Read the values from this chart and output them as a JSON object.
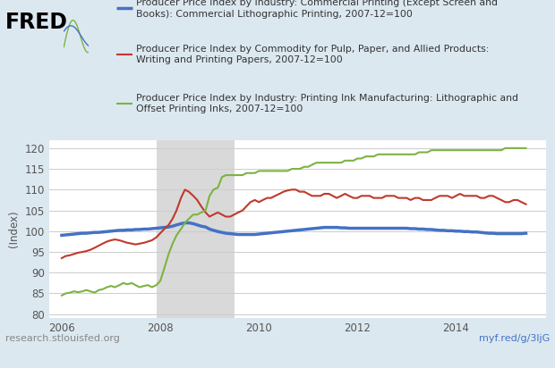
{
  "background_color": "#dce8f0",
  "plot_bg_color": "#ffffff",
  "gray_shade_start": 2007.92,
  "gray_shade_end": 2009.5,
  "gray_shade_color": "#d9d9d9",
  "xlim": [
    2005.75,
    2015.83
  ],
  "ylim": [
    79,
    122
  ],
  "yticks": [
    80,
    85,
    90,
    95,
    100,
    105,
    110,
    115,
    120
  ],
  "xticks": [
    2006,
    2008,
    2010,
    2012,
    2014
  ],
  "ylabel": "(Index)",
  "fred_text": "FRED",
  "url_left": "research.stlouisfed.org",
  "url_right": "myf.red/g/3ljG",
  "legend": [
    {
      "label": "Producer Price Index by Industry: Commercial Printing (Except Screen and\nBooks): Commercial Lithographic Printing, 2007-12=100",
      "color": "#4472c4",
      "linewidth": 2.5
    },
    {
      "label": "Producer Price Index by Commodity for Pulp, Paper, and Allied Products:\nWriting and Printing Papers, 2007-12=100",
      "color": "#c0392b",
      "linewidth": 1.5
    },
    {
      "label": "Producer Price Index by Industry: Printing Ink Manufacturing: Lithographic and\nOffset Printing Inks, 2007-12=100",
      "color": "#7cb342",
      "linewidth": 1.5
    }
  ],
  "blue_series": {
    "x": [
      2006.0,
      2006.08,
      2006.17,
      2006.25,
      2006.33,
      2006.42,
      2006.5,
      2006.58,
      2006.67,
      2006.75,
      2006.83,
      2006.92,
      2007.0,
      2007.08,
      2007.17,
      2007.25,
      2007.33,
      2007.42,
      2007.5,
      2007.58,
      2007.67,
      2007.75,
      2007.83,
      2007.92,
      2008.0,
      2008.08,
      2008.17,
      2008.25,
      2008.33,
      2008.42,
      2008.5,
      2008.58,
      2008.67,
      2008.75,
      2008.83,
      2008.92,
      2009.0,
      2009.08,
      2009.17,
      2009.25,
      2009.33,
      2009.42,
      2009.5,
      2009.58,
      2009.67,
      2009.75,
      2009.83,
      2009.92,
      2010.0,
      2010.08,
      2010.17,
      2010.25,
      2010.33,
      2010.42,
      2010.5,
      2010.58,
      2010.67,
      2010.75,
      2010.83,
      2010.92,
      2011.0,
      2011.08,
      2011.17,
      2011.25,
      2011.33,
      2011.42,
      2011.5,
      2011.58,
      2011.67,
      2011.75,
      2011.83,
      2011.92,
      2012.0,
      2012.08,
      2012.17,
      2012.25,
      2012.33,
      2012.42,
      2012.5,
      2012.58,
      2012.67,
      2012.75,
      2012.83,
      2012.92,
      2013.0,
      2013.08,
      2013.17,
      2013.25,
      2013.33,
      2013.42,
      2013.5,
      2013.58,
      2013.67,
      2013.75,
      2013.83,
      2013.92,
      2014.0,
      2014.08,
      2014.17,
      2014.25,
      2014.33,
      2014.42,
      2014.5,
      2014.58,
      2014.67,
      2014.75,
      2014.83,
      2014.92,
      2015.0,
      2015.08,
      2015.17,
      2015.25,
      2015.33,
      2015.42
    ],
    "y": [
      99.0,
      99.1,
      99.2,
      99.3,
      99.4,
      99.5,
      99.5,
      99.6,
      99.7,
      99.7,
      99.8,
      99.9,
      100.0,
      100.1,
      100.2,
      100.2,
      100.3,
      100.3,
      100.4,
      100.4,
      100.5,
      100.5,
      100.6,
      100.7,
      100.8,
      100.9,
      101.0,
      101.2,
      101.5,
      101.8,
      102.0,
      102.0,
      101.8,
      101.5,
      101.2,
      101.0,
      100.5,
      100.2,
      99.9,
      99.7,
      99.5,
      99.4,
      99.3,
      99.2,
      99.2,
      99.2,
      99.2,
      99.2,
      99.3,
      99.4,
      99.5,
      99.6,
      99.7,
      99.8,
      99.9,
      100.0,
      100.1,
      100.2,
      100.3,
      100.4,
      100.5,
      100.6,
      100.7,
      100.8,
      100.9,
      100.9,
      100.9,
      100.9,
      100.8,
      100.8,
      100.7,
      100.7,
      100.7,
      100.7,
      100.7,
      100.7,
      100.7,
      100.7,
      100.7,
      100.7,
      100.7,
      100.7,
      100.7,
      100.7,
      100.7,
      100.6,
      100.6,
      100.5,
      100.5,
      100.4,
      100.4,
      100.3,
      100.2,
      100.2,
      100.1,
      100.1,
      100.0,
      100.0,
      99.9,
      99.9,
      99.8,
      99.8,
      99.7,
      99.6,
      99.5,
      99.5,
      99.4,
      99.4,
      99.4,
      99.4,
      99.4,
      99.4,
      99.4,
      99.5
    ]
  },
  "red_series": {
    "x": [
      2006.0,
      2006.08,
      2006.17,
      2006.25,
      2006.33,
      2006.42,
      2006.5,
      2006.58,
      2006.67,
      2006.75,
      2006.83,
      2006.92,
      2007.0,
      2007.08,
      2007.17,
      2007.25,
      2007.33,
      2007.42,
      2007.5,
      2007.58,
      2007.67,
      2007.75,
      2007.83,
      2007.92,
      2008.0,
      2008.08,
      2008.17,
      2008.25,
      2008.33,
      2008.42,
      2008.5,
      2008.58,
      2008.67,
      2008.75,
      2008.83,
      2008.92,
      2009.0,
      2009.08,
      2009.17,
      2009.25,
      2009.33,
      2009.42,
      2009.5,
      2009.58,
      2009.67,
      2009.75,
      2009.83,
      2009.92,
      2010.0,
      2010.08,
      2010.17,
      2010.25,
      2010.33,
      2010.42,
      2010.5,
      2010.58,
      2010.67,
      2010.75,
      2010.83,
      2010.92,
      2011.0,
      2011.08,
      2011.17,
      2011.25,
      2011.33,
      2011.42,
      2011.5,
      2011.58,
      2011.67,
      2011.75,
      2011.83,
      2011.92,
      2012.0,
      2012.08,
      2012.17,
      2012.25,
      2012.33,
      2012.42,
      2012.5,
      2012.58,
      2012.67,
      2012.75,
      2012.83,
      2012.92,
      2013.0,
      2013.08,
      2013.17,
      2013.25,
      2013.33,
      2013.42,
      2013.5,
      2013.58,
      2013.67,
      2013.75,
      2013.83,
      2013.92,
      2014.0,
      2014.08,
      2014.17,
      2014.25,
      2014.33,
      2014.42,
      2014.5,
      2014.58,
      2014.67,
      2014.75,
      2014.83,
      2014.92,
      2015.0,
      2015.08,
      2015.17,
      2015.25,
      2015.33,
      2015.42
    ],
    "y": [
      93.5,
      94.0,
      94.2,
      94.5,
      94.8,
      95.0,
      95.2,
      95.5,
      96.0,
      96.5,
      97.0,
      97.5,
      97.8,
      98.0,
      97.8,
      97.5,
      97.2,
      97.0,
      96.8,
      97.0,
      97.2,
      97.5,
      97.8,
      98.5,
      99.5,
      100.5,
      101.5,
      103.0,
      105.0,
      108.0,
      110.0,
      109.5,
      108.5,
      107.5,
      106.0,
      104.5,
      103.5,
      104.0,
      104.5,
      104.0,
      103.5,
      103.5,
      104.0,
      104.5,
      105.0,
      106.0,
      107.0,
      107.5,
      107.0,
      107.5,
      108.0,
      108.0,
      108.5,
      109.0,
      109.5,
      109.8,
      110.0,
      110.0,
      109.5,
      109.5,
      109.0,
      108.5,
      108.5,
      108.5,
      109.0,
      109.0,
      108.5,
      108.0,
      108.5,
      109.0,
      108.5,
      108.0,
      108.0,
      108.5,
      108.5,
      108.5,
      108.0,
      108.0,
      108.0,
      108.5,
      108.5,
      108.5,
      108.0,
      108.0,
      108.0,
      107.5,
      108.0,
      108.0,
      107.5,
      107.5,
      107.5,
      108.0,
      108.5,
      108.5,
      108.5,
      108.0,
      108.5,
      109.0,
      108.5,
      108.5,
      108.5,
      108.5,
      108.0,
      108.0,
      108.5,
      108.5,
      108.0,
      107.5,
      107.0,
      107.0,
      107.5,
      107.5,
      107.0,
      106.5
    ]
  },
  "green_series": {
    "x": [
      2006.0,
      2006.08,
      2006.17,
      2006.25,
      2006.33,
      2006.42,
      2006.5,
      2006.58,
      2006.67,
      2006.75,
      2006.83,
      2006.92,
      2007.0,
      2007.08,
      2007.17,
      2007.25,
      2007.33,
      2007.42,
      2007.5,
      2007.58,
      2007.67,
      2007.75,
      2007.83,
      2007.92,
      2008.0,
      2008.08,
      2008.17,
      2008.25,
      2008.33,
      2008.42,
      2008.5,
      2008.58,
      2008.67,
      2008.75,
      2008.83,
      2008.92,
      2009.0,
      2009.08,
      2009.17,
      2009.25,
      2009.33,
      2009.42,
      2009.5,
      2009.58,
      2009.67,
      2009.75,
      2009.83,
      2009.92,
      2010.0,
      2010.08,
      2010.17,
      2010.25,
      2010.33,
      2010.42,
      2010.5,
      2010.58,
      2010.67,
      2010.75,
      2010.83,
      2010.92,
      2011.0,
      2011.08,
      2011.17,
      2011.25,
      2011.33,
      2011.42,
      2011.5,
      2011.58,
      2011.67,
      2011.75,
      2011.83,
      2011.92,
      2012.0,
      2012.08,
      2012.17,
      2012.25,
      2012.33,
      2012.42,
      2012.5,
      2012.58,
      2012.67,
      2012.75,
      2012.83,
      2012.92,
      2013.0,
      2013.08,
      2013.17,
      2013.25,
      2013.33,
      2013.42,
      2013.5,
      2013.58,
      2013.67,
      2013.75,
      2013.83,
      2013.92,
      2014.0,
      2014.08,
      2014.17,
      2014.25,
      2014.33,
      2014.42,
      2014.5,
      2014.58,
      2014.67,
      2014.75,
      2014.83,
      2014.92,
      2015.0,
      2015.08,
      2015.17,
      2015.25,
      2015.33,
      2015.42
    ],
    "y": [
      84.5,
      85.0,
      85.2,
      85.5,
      85.3,
      85.5,
      85.8,
      85.5,
      85.2,
      85.8,
      86.0,
      86.5,
      86.8,
      86.5,
      87.0,
      87.5,
      87.2,
      87.5,
      87.0,
      86.5,
      86.8,
      87.0,
      86.5,
      87.0,
      88.0,
      91.0,
      94.5,
      97.0,
      99.0,
      100.5,
      102.0,
      103.0,
      104.0,
      104.0,
      104.5,
      105.0,
      108.5,
      110.0,
      110.5,
      113.0,
      113.5,
      113.5,
      113.5,
      113.5,
      113.5,
      114.0,
      114.0,
      114.0,
      114.5,
      114.5,
      114.5,
      114.5,
      114.5,
      114.5,
      114.5,
      114.5,
      115.0,
      115.0,
      115.0,
      115.5,
      115.5,
      116.0,
      116.5,
      116.5,
      116.5,
      116.5,
      116.5,
      116.5,
      116.5,
      117.0,
      117.0,
      117.0,
      117.5,
      117.5,
      118.0,
      118.0,
      118.0,
      118.5,
      118.5,
      118.5,
      118.5,
      118.5,
      118.5,
      118.5,
      118.5,
      118.5,
      118.5,
      119.0,
      119.0,
      119.0,
      119.5,
      119.5,
      119.5,
      119.5,
      119.5,
      119.5,
      119.5,
      119.5,
      119.5,
      119.5,
      119.5,
      119.5,
      119.5,
      119.5,
      119.5,
      119.5,
      119.5,
      119.5,
      120.0,
      120.0,
      120.0,
      120.0,
      120.0,
      120.0
    ]
  }
}
